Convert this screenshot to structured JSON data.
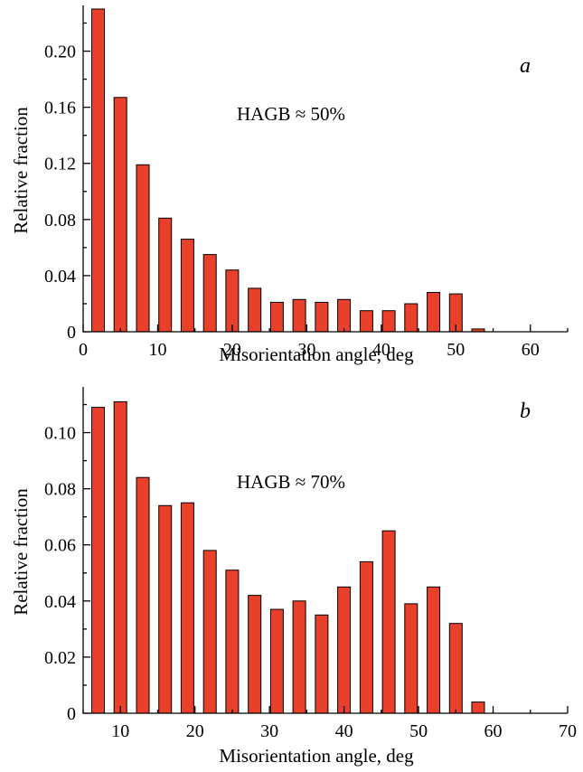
{
  "chart_data": [
    {
      "type": "bar",
      "panel_label": "a",
      "annotation": "HAGB ≈ 50%",
      "xlabel": "Misorientation angle, deg",
      "ylabel": "Relative fraction",
      "xlim": [
        0,
        65
      ],
      "ylim": [
        0,
        0.23
      ],
      "x_ticks": [
        0,
        10,
        20,
        30,
        40,
        50,
        60
      ],
      "y_ticks": [
        0,
        0.04,
        0.08,
        0.12,
        0.16,
        0.2
      ],
      "y_tick_labels": [
        "0",
        "0.04",
        "0.08",
        "0.12",
        "0.16",
        "0.20"
      ],
      "x": [
        2,
        5,
        8,
        11,
        14,
        17,
        20,
        23,
        26,
        29,
        32,
        35,
        38,
        41,
        44,
        47,
        50,
        53,
        56,
        59
      ],
      "values": [
        0.23,
        0.167,
        0.119,
        0.081,
        0.066,
        0.055,
        0.044,
        0.031,
        0.021,
        0.023,
        0.021,
        0.023,
        0.015,
        0.015,
        0.02,
        0.028,
        0.027,
        0.002,
        0.0,
        0.0
      ],
      "bar_color": "#e8402a"
    },
    {
      "type": "bar",
      "panel_label": "b",
      "annotation": "HAGB ≈ 70%",
      "xlabel": "Misorientation angle, deg",
      "ylabel": "Relative fraction",
      "xlim": [
        5,
        70
      ],
      "ylim": [
        0,
        0.115
      ],
      "x_ticks": [
        10,
        20,
        30,
        40,
        50,
        60,
        70
      ],
      "y_ticks": [
        0,
        0.02,
        0.04,
        0.06,
        0.08,
        0.1
      ],
      "y_tick_labels": [
        "0",
        "0.02",
        "0.04",
        "0.06",
        "0.08",
        "0.10"
      ],
      "x": [
        7,
        10,
        13,
        16,
        19,
        22,
        25,
        28,
        31,
        34,
        37,
        40,
        43,
        46,
        49,
        52,
        55,
        58,
        61
      ],
      "values": [
        0.109,
        0.111,
        0.084,
        0.074,
        0.075,
        0.058,
        0.051,
        0.042,
        0.037,
        0.04,
        0.035,
        0.045,
        0.054,
        0.065,
        0.039,
        0.045,
        0.032,
        0.004,
        0.0
      ],
      "bar_color": "#e8402a"
    }
  ]
}
